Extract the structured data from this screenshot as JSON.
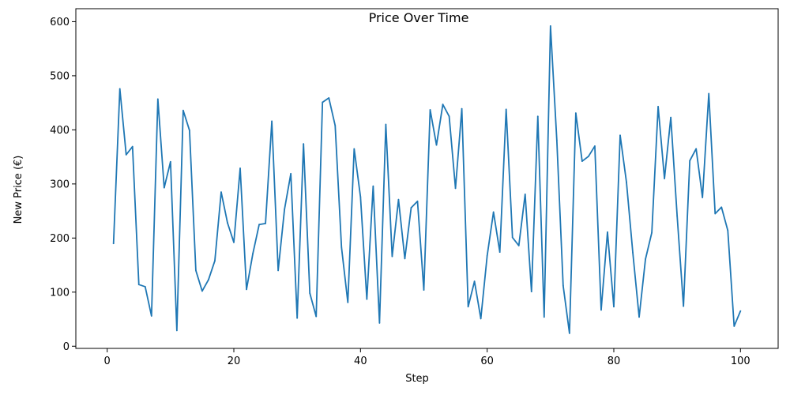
{
  "chart_data": {
    "type": "line",
    "title": "Price Over Time",
    "xlabel": "Step",
    "ylabel": "New Price (€)",
    "xlim": [
      -4.95,
      105.95
    ],
    "ylim": [
      -4,
      624
    ],
    "xticks": [
      0,
      20,
      40,
      60,
      80,
      100
    ],
    "yticks": [
      0,
      100,
      200,
      300,
      400,
      500,
      600
    ],
    "grid": false,
    "legend": "none",
    "colors": {
      "line": "#1f77b4",
      "axes": "#000000",
      "background": "#ffffff"
    },
    "series": [
      {
        "x": [
          1,
          2,
          3,
          4,
          5,
          6,
          7,
          8,
          9,
          10,
          11,
          12,
          13,
          14,
          15,
          16,
          17,
          18,
          19,
          20,
          21,
          22,
          23,
          24,
          25,
          26,
          27,
          28,
          29,
          30,
          31,
          32,
          33,
          34,
          35,
          36,
          37,
          38,
          39,
          40,
          41,
          42,
          43,
          44,
          45,
          46,
          47,
          48,
          49,
          50,
          51,
          52,
          53,
          54,
          55,
          56,
          57,
          58,
          59,
          60,
          61,
          62,
          63,
          64,
          65,
          66,
          67,
          68,
          69,
          70,
          71,
          72,
          73,
          74,
          75,
          76,
          77,
          78,
          79,
          80,
          81,
          82,
          83,
          84,
          85,
          86,
          87,
          88,
          89,
          90,
          91,
          92,
          93,
          94,
          95,
          96,
          97,
          98,
          99,
          100
        ],
        "values": [
          190,
          476,
          354,
          369,
          114,
          110,
          56,
          457,
          293,
          341,
          29,
          436,
          399,
          140,
          102,
          123,
          158,
          285,
          228,
          192,
          329,
          105,
          171,
          225,
          227,
          416,
          140,
          253,
          319,
          52,
          374,
          98,
          55,
          451,
          459,
          408,
          183,
          81,
          365,
          276,
          87,
          296,
          43,
          410,
          166,
          271,
          162,
          256,
          268,
          104,
          437,
          372,
          447,
          425,
          292,
          439,
          73,
          120,
          51,
          167,
          248,
          174,
          438,
          201,
          186,
          281,
          101,
          425,
          54,
          592,
          381,
          112,
          24,
          431,
          342,
          351,
          370,
          67,
          211,
          73,
          390,
          303,
          173,
          54,
          161,
          210,
          443,
          310,
          423,
          241,
          74,
          343,
          365,
          275,
          467,
          245,
          257,
          214,
          37,
          65
        ]
      }
    ]
  }
}
